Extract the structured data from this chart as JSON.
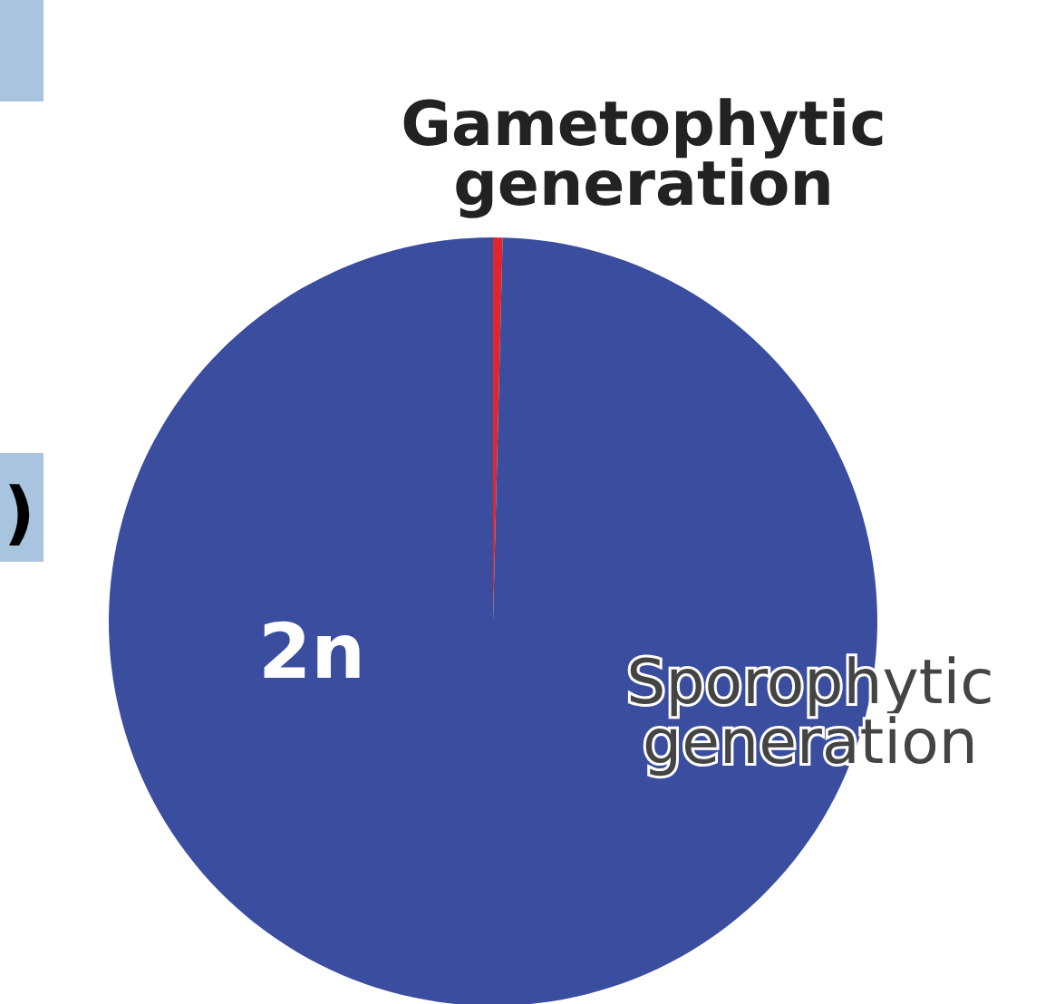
{
  "chart_data": {
    "type": "pie",
    "categories": [
      "Gametophytic generation",
      "Sporophytic generation"
    ],
    "values": [
      0.4,
      99.6
    ],
    "colors": [
      "#e0262b",
      "#3a4d9f"
    ],
    "annotations": [
      {
        "text": "2n",
        "x": "Sporophytic generation"
      },
      ")"
    ]
  }
}
